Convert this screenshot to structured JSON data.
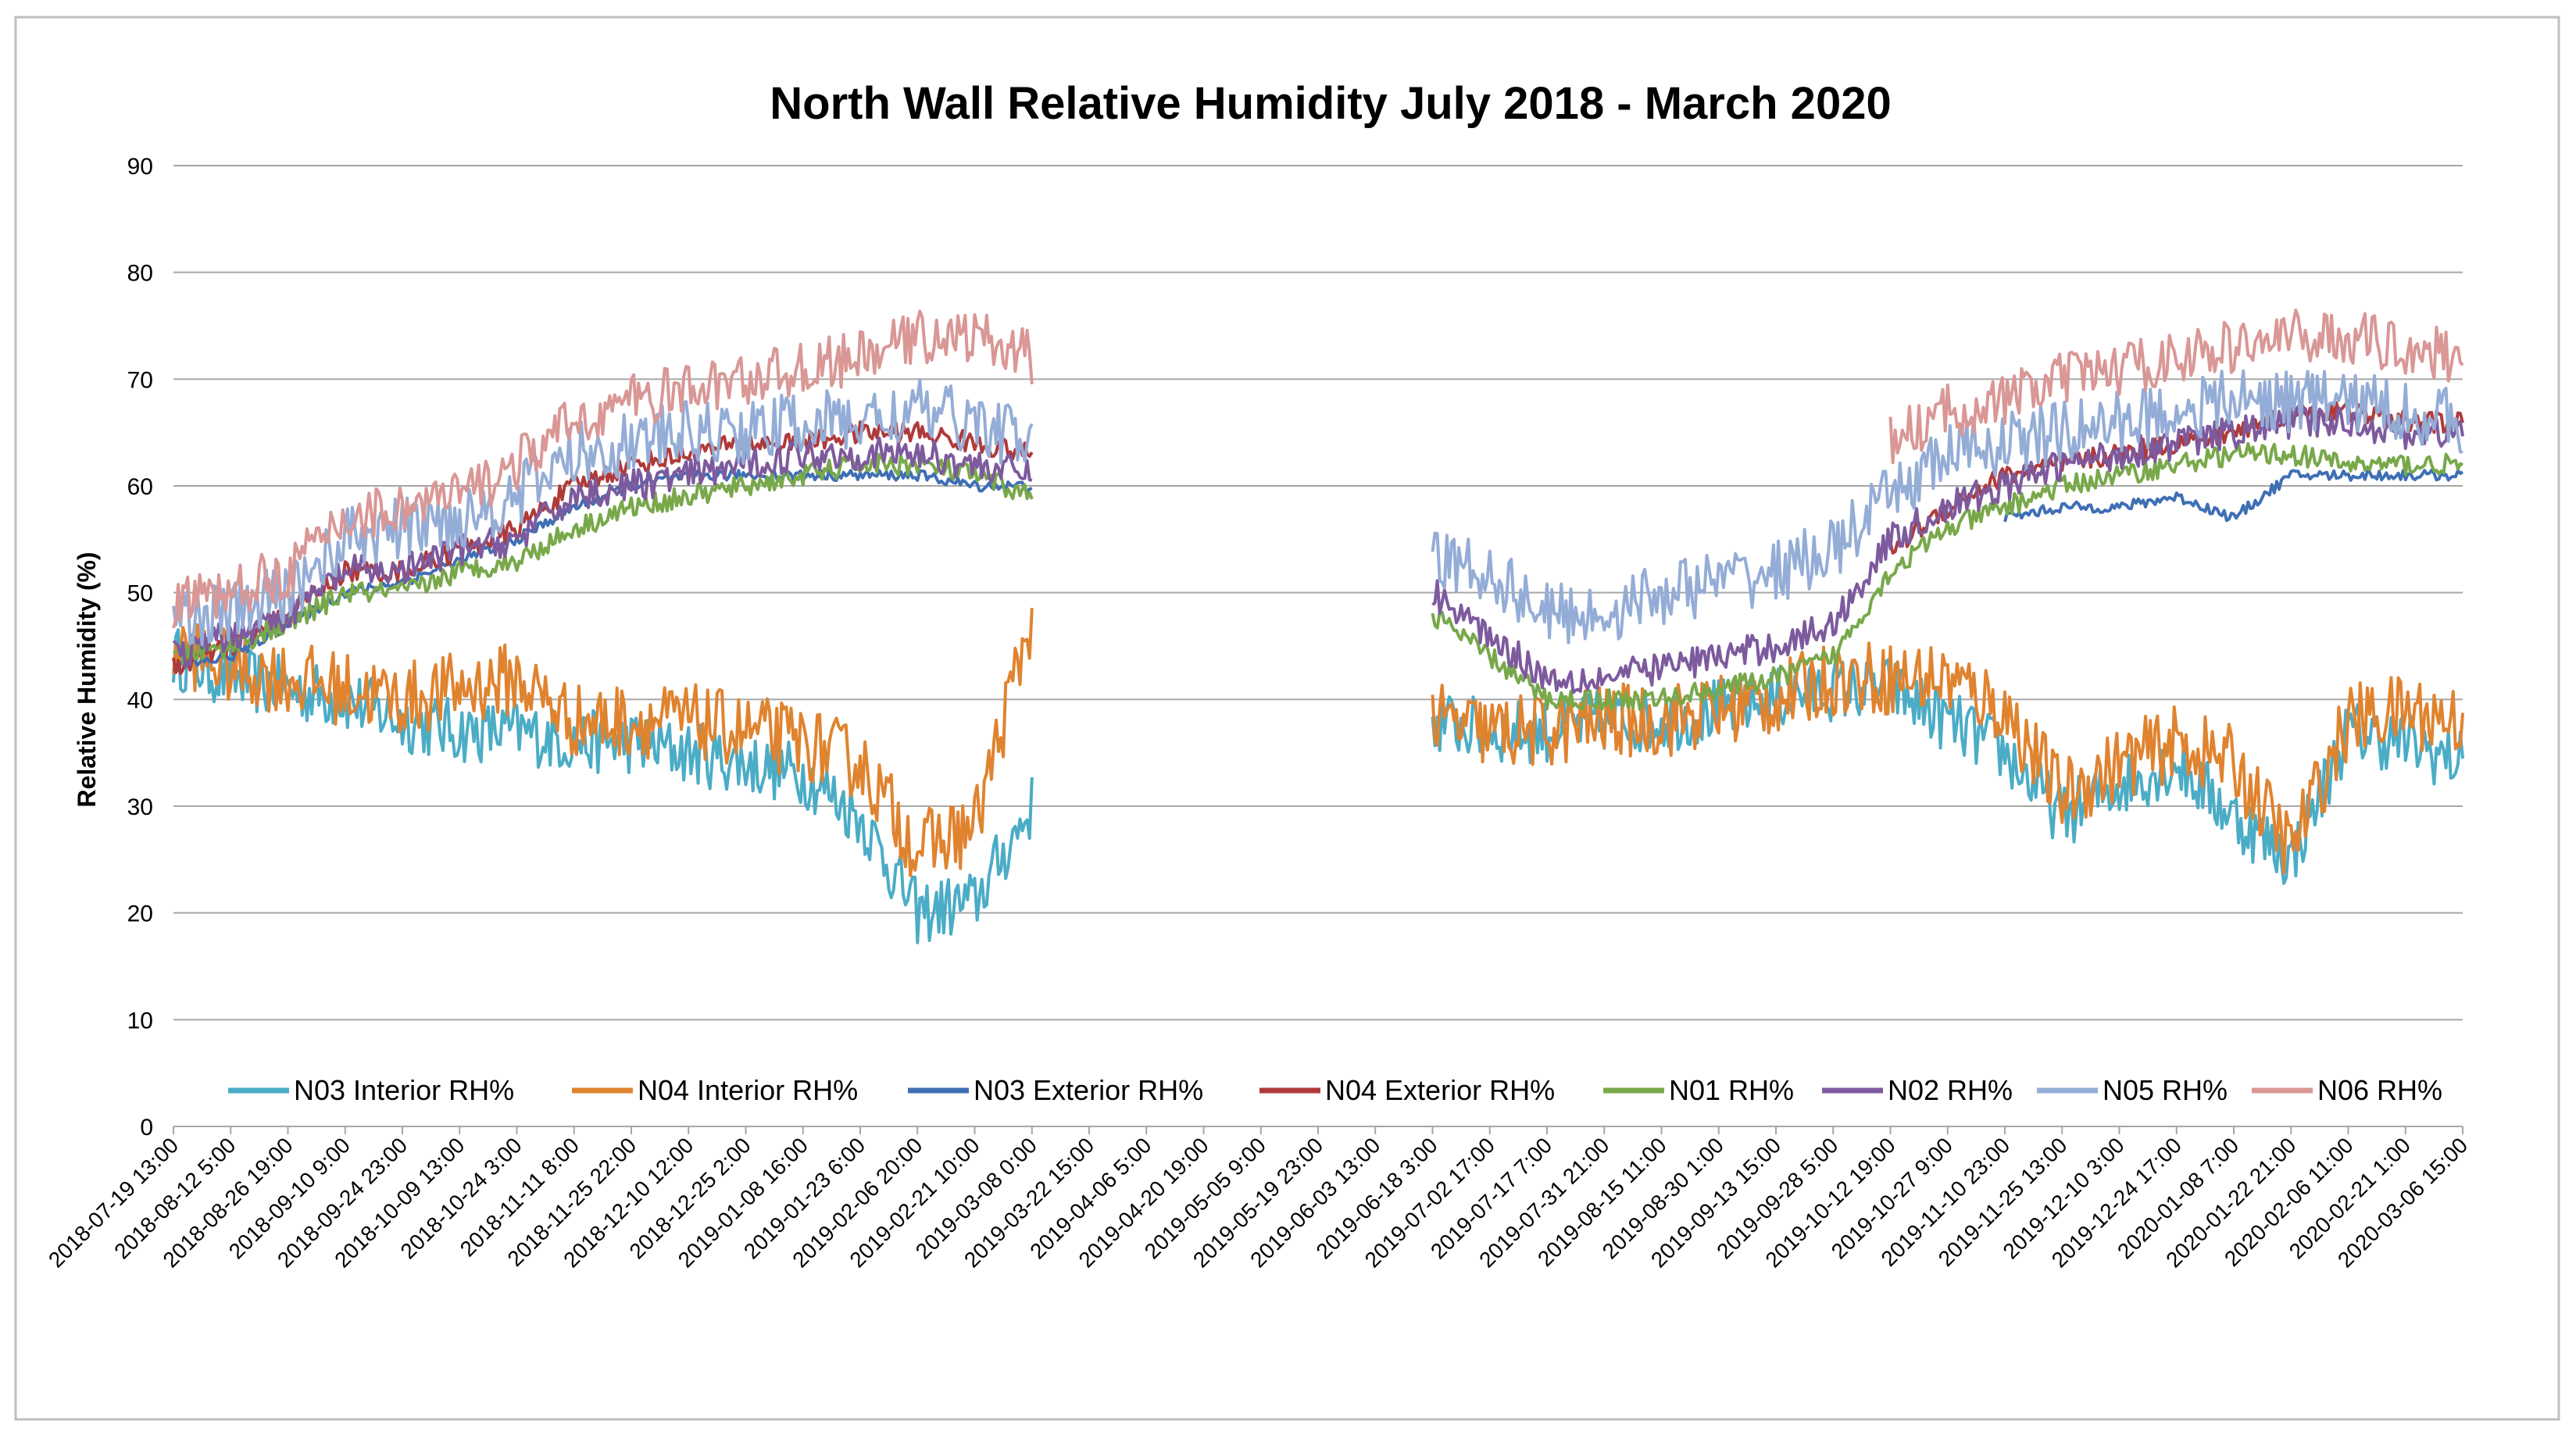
{
  "chart_data": {
    "type": "line",
    "title": "North Wall Relative Humidity July 2018 - March 2020",
    "xlabel": "",
    "ylabel": "Relative Humidity (%)",
    "ylim": [
      0,
      90
    ],
    "yticks": [
      0,
      10,
      20,
      30,
      40,
      50,
      60,
      70,
      80,
      90
    ],
    "grid": true,
    "legend_position": "bottom",
    "categories": [
      "2018-07-19 13:00",
      "2018-08-12 5:00",
      "2018-08-26 19:00",
      "2018-09-10 9:00",
      "2018-09-24 23:00",
      "2018-10-09 13:00",
      "2018-10-24 3:00",
      "2018-11-11 8:00",
      "2018-11-25 22:00",
      "2018-12-10 12:00",
      "2018-12-25 2:00",
      "2019-01-08 16:00",
      "2019-01-23 6:00",
      "2019-02-06 20:00",
      "2019-02-21 10:00",
      "2019-03-08 0:00",
      "2019-03-22 15:00",
      "2019-04-06 5:00",
      "2019-04-20 19:00",
      "2019-05-05 9:00",
      "2019-05-19 23:00",
      "2019-06-03 13:00",
      "2019-06-18 3:00",
      "2019-07-02 17:00",
      "2019-07-17 7:00",
      "2019-07-31 21:00",
      "2019-08-15 11:00",
      "2019-08-30 1:00",
      "2019-09-13 15:00",
      "2019-09-28 5:00",
      "2019-10-12 19:00",
      "2019-10-27 9:00",
      "2019-11-10 23:00",
      "2019-11-25 13:00",
      "2019-12-10 3:00",
      "2019-12-24 17:00",
      "2020-01-08 7:00",
      "2020-01-22 21:00",
      "2020-02-06 11:00",
      "2020-02-21 1:00",
      "2020-03-06 15:00"
    ],
    "series": [
      {
        "name": "N03 Interior RH%",
        "color": "#4bacc6",
        "noise": 3,
        "values": [
          44,
          42,
          41,
          40,
          38,
          37,
          37,
          36,
          36,
          35,
          34,
          33,
          29,
          20,
          21,
          30,
          null,
          null,
          null,
          null,
          null,
          null,
          38,
          37,
          37,
          38,
          38,
          39,
          40,
          41,
          41,
          38,
          35,
          29,
          32,
          34,
          29,
          25,
          37,
          36,
          34
        ]
      },
      {
        "name": "N04 Interior RH%",
        "color": "#e0832f",
        "noise": 3.5,
        "values": [
          45,
          43,
          42,
          41,
          40,
          41,
          42,
          38,
          38,
          38,
          37,
          36,
          34,
          26,
          28,
          48,
          null,
          null,
          null,
          null,
          null,
          null,
          38,
          37,
          37,
          38,
          38,
          39,
          40,
          42,
          42,
          42,
          39,
          31,
          34,
          36,
          34,
          26,
          38,
          39,
          38
        ]
      },
      {
        "name": "N03 Exterior RH%",
        "color": "#3f6fb5",
        "noise": 0.5,
        "values": [
          43,
          44,
          47,
          50,
          51,
          53,
          55,
          58,
          60,
          61,
          61,
          61,
          61,
          61,
          60,
          60,
          null,
          null,
          null,
          null,
          null,
          null,
          null,
          null,
          null,
          null,
          null,
          null,
          null,
          null,
          null,
          null,
          57,
          58,
          58,
          59,
          57,
          61,
          61,
          61,
          61
        ]
      },
      {
        "name": "N04 Exterior RH%",
        "color": "#b03a3a",
        "noise": 1,
        "values": [
          43,
          45,
          48,
          52,
          52,
          54,
          56,
          60,
          62,
          63,
          64,
          64,
          65,
          65,
          64,
          63,
          null,
          null,
          null,
          null,
          null,
          null,
          null,
          null,
          null,
          null,
          null,
          null,
          null,
          null,
          54,
          58,
          61,
          62,
          63,
          64,
          65,
          67,
          67,
          66,
          66
        ]
      },
      {
        "name": "N01 RH%",
        "color": "#78a84a",
        "noise": 1,
        "values": [
          44,
          45,
          47,
          50,
          50,
          52,
          53,
          56,
          58,
          59,
          60,
          61,
          62,
          62,
          61,
          59,
          null,
          null,
          null,
          null,
          null,
          null,
          48,
          44,
          40,
          40,
          40,
          41,
          42,
          44,
          52,
          56,
          58,
          60,
          61,
          62,
          63,
          63,
          62,
          62,
          62
        ]
      },
      {
        "name": "N02 RH%",
        "color": "#7d5a9e",
        "noise": 1.5,
        "values": [
          44,
          46,
          48,
          52,
          52,
          54,
          55,
          59,
          60,
          61,
          62,
          63,
          63,
          63,
          62,
          61,
          null,
          null,
          null,
          null,
          null,
          null,
          50,
          46,
          42,
          42,
          43,
          44,
          45,
          47,
          55,
          58,
          60,
          62,
          63,
          64,
          65,
          66,
          66,
          65,
          65
        ]
      },
      {
        "name": "N05 RH%",
        "color": "#94add7",
        "noise": 3,
        "values": [
          48,
          48,
          50,
          55,
          56,
          57,
          59,
          63,
          64,
          65,
          65,
          66,
          66,
          67,
          66,
          64,
          null,
          null,
          null,
          null,
          null,
          null,
          53,
          52,
          48,
          48,
          50,
          51,
          52,
          54,
          59,
          63,
          64,
          65,
          66,
          67,
          68,
          68,
          68,
          67,
          66
        ]
      },
      {
        "name": "N06 RH%",
        "color": "#d99795",
        "noise": 2.5,
        "values": [
          49,
          50,
          52,
          57,
          58,
          59,
          62,
          66,
          68,
          69,
          70,
          71,
          72,
          74,
          74,
          72,
          null,
          null,
          null,
          null,
          null,
          null,
          null,
          null,
          null,
          null,
          null,
          null,
          null,
          null,
          64,
          67,
          68,
          70,
          71,
          72,
          73,
          74,
          74,
          73,
          72
        ]
      }
    ]
  }
}
